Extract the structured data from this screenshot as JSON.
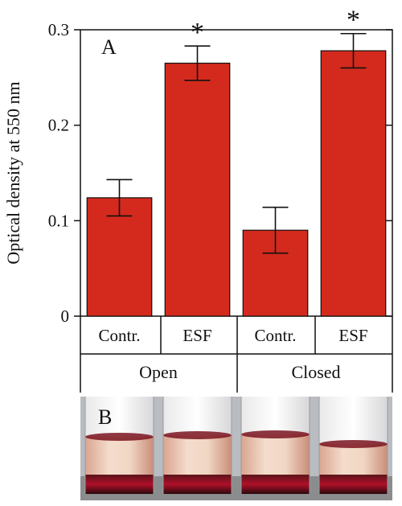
{
  "chart_data": {
    "type": "bar",
    "panel_label": "A",
    "ylabel": "Optical density at 550 nm",
    "ylim": [
      0,
      0.3
    ],
    "yticks": [
      "0",
      "0.1",
      "0.2",
      "0.3"
    ],
    "grid": false,
    "bars": [
      {
        "category": "Contr.",
        "group": "Open",
        "value": 0.124,
        "error": 0.019,
        "significance": ""
      },
      {
        "category": "ESF",
        "group": "Open",
        "value": 0.265,
        "error": 0.018,
        "significance": "*"
      },
      {
        "category": "Contr.",
        "group": "Closed",
        "value": 0.09,
        "error": 0.024,
        "significance": ""
      },
      {
        "category": "ESF",
        "group": "Closed",
        "value": 0.278,
        "error": 0.018,
        "significance": "*"
      }
    ],
    "groups": [
      "Open",
      "Closed"
    ],
    "bar_color": "#d42a1e"
  },
  "photo": {
    "panel_label": "B",
    "tube_count": 4
  }
}
